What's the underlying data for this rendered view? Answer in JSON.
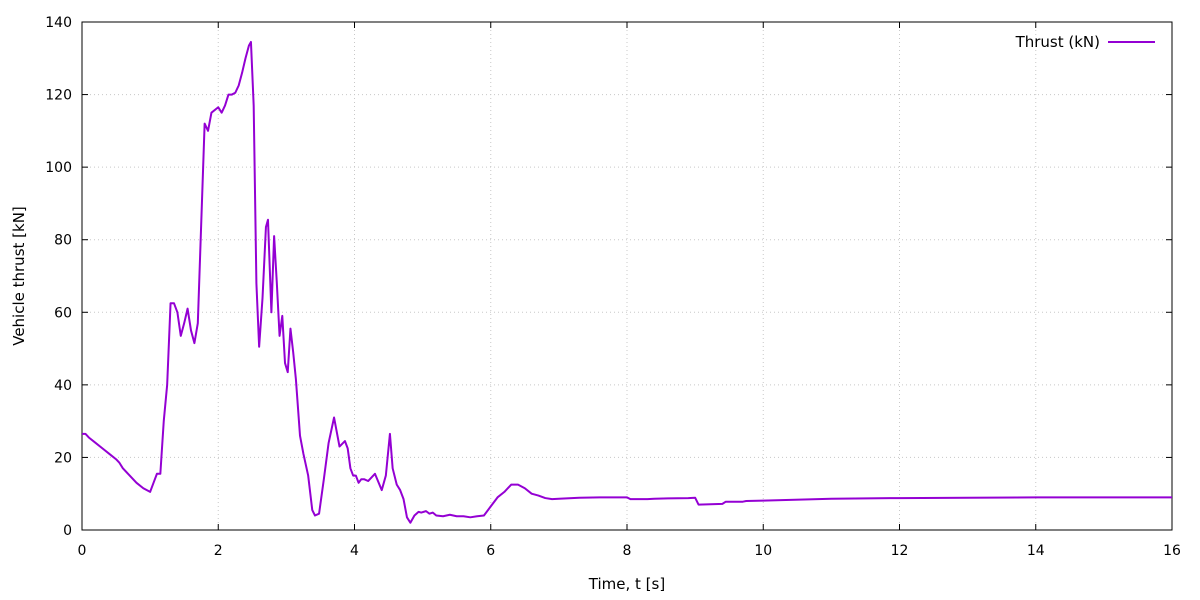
{
  "chart_data": {
    "type": "line",
    "xlabel": "Time, t [s]",
    "ylabel": "Vehicle thrust [kN]",
    "xlim": [
      0,
      16
    ],
    "ylim": [
      0,
      140
    ],
    "xticks": [
      0,
      2,
      4,
      6,
      8,
      10,
      12,
      14,
      16
    ],
    "yticks": [
      0,
      20,
      40,
      60,
      80,
      100,
      120,
      140
    ],
    "grid": true,
    "legend_position": "top-right",
    "series": [
      {
        "name": "Thrust (kN)",
        "color": "#9400d3",
        "x": [
          0.0,
          0.05,
          0.1,
          0.2,
          0.3,
          0.4,
          0.5,
          0.55,
          0.6,
          0.7,
          0.8,
          0.9,
          1.0,
          1.05,
          1.1,
          1.15,
          1.2,
          1.25,
          1.3,
          1.35,
          1.4,
          1.45,
          1.5,
          1.55,
          1.6,
          1.65,
          1.7,
          1.8,
          1.85,
          1.9,
          2.0,
          2.05,
          2.1,
          2.15,
          2.2,
          2.25,
          2.3,
          2.35,
          2.4,
          2.45,
          2.48,
          2.52,
          2.56,
          2.6,
          2.65,
          2.7,
          2.73,
          2.78,
          2.82,
          2.86,
          2.9,
          2.94,
          2.98,
          3.02,
          3.06,
          3.1,
          3.14,
          3.2,
          3.25,
          3.32,
          3.38,
          3.42,
          3.48,
          3.55,
          3.62,
          3.7,
          3.78,
          3.86,
          3.9,
          3.94,
          3.98,
          4.02,
          4.06,
          4.1,
          4.14,
          4.2,
          4.3,
          4.4,
          4.46,
          4.52,
          4.56,
          4.62,
          4.67,
          4.72,
          4.77,
          4.82,
          4.88,
          4.94,
          4.98,
          5.05,
          5.1,
          5.15,
          5.2,
          5.3,
          5.4,
          5.5,
          5.6,
          5.7,
          5.8,
          5.9,
          6.0,
          6.1,
          6.2,
          6.3,
          6.4,
          6.5,
          6.6,
          6.7,
          6.8,
          6.9,
          7.0,
          7.3,
          7.6,
          8.0,
          8.05,
          8.3,
          8.4,
          8.6,
          8.9,
          9.0,
          9.05,
          9.4,
          9.45,
          9.7,
          9.75,
          10.0,
          11.0,
          12.0,
          13.0,
          14.0,
          15.0,
          16.0
        ],
        "y": [
          26.5,
          26.5,
          25.5,
          24,
          22.5,
          21,
          19.5,
          18.5,
          17,
          15,
          13,
          11.5,
          10.5,
          13,
          15.5,
          15.5,
          30,
          40,
          62.5,
          62.5,
          60,
          53.5,
          57,
          61,
          55,
          51.5,
          57,
          112,
          110,
          115,
          116.5,
          115,
          117,
          120,
          120,
          120.5,
          122.5,
          126,
          130,
          133.5,
          134.5,
          117,
          68,
          50.5,
          64,
          83.5,
          85.5,
          60,
          81,
          68,
          53.5,
          59,
          46,
          43.5,
          55.5,
          49,
          41.5,
          26,
          21,
          15,
          5.5,
          4,
          4.5,
          14,
          24,
          31,
          23,
          24.5,
          22.5,
          17,
          15,
          15,
          13,
          14,
          14,
          13.5,
          15.5,
          11,
          15,
          26.5,
          17,
          12.5,
          11,
          8.5,
          3.5,
          2,
          4,
          5,
          4.8,
          5.2,
          4.5,
          4.8,
          4,
          3.8,
          4.2,
          3.8,
          3.8,
          3.5,
          3.8,
          4.0,
          6.5,
          9,
          10.5,
          12.5,
          12.5,
          11.5,
          10,
          9.5,
          8.8,
          8.5,
          8.6,
          8.9,
          9.0,
          9.0,
          8.5,
          8.5,
          8.6,
          8.7,
          8.8,
          8.9,
          7.0,
          7.2,
          7.8,
          7.8,
          8.0,
          8.1,
          8.6,
          8.8,
          8.9,
          9.0,
          9.0,
          9.0
        ]
      }
    ]
  }
}
